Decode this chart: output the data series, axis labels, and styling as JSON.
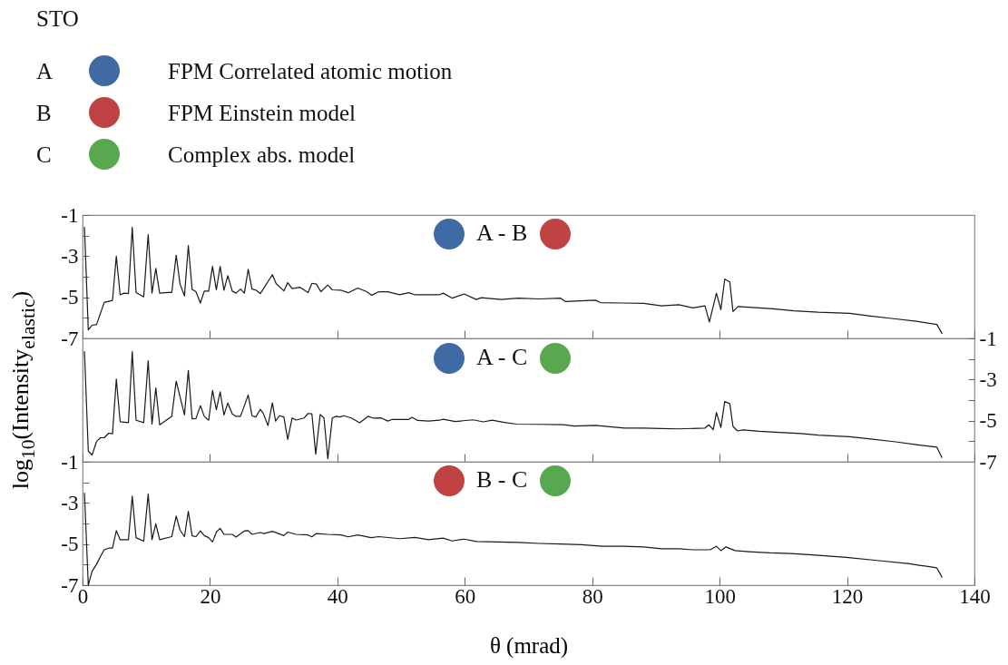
{
  "chart_data": [
    {
      "type": "line",
      "title": "A - B",
      "annotations": [
        "STO",
        "A",
        "FPM Correlated atomic motion",
        "B",
        "FPM Einstein model",
        "C",
        "Complex abs. model"
      ],
      "xlim": [
        0,
        140
      ],
      "xticks": [
        0,
        20,
        40,
        60,
        80,
        100,
        120,
        140
      ],
      "ylim": [
        -7,
        -1
      ],
      "yticks": [
        -1,
        {
          "value": -2,
          "label": null
        },
        -3,
        {
          "value": -4,
          "label": null
        },
        -5,
        {
          "value": -6,
          "label": null
        },
        -7
      ],
      "tick_labels": "y",
      "x": [
        0.3,
        0.9,
        1.5,
        2.2,
        3.4,
        4.7,
        5.3,
        5.9,
        6.5,
        7.2,
        7.8,
        8.4,
        9.6,
        10.3,
        10.9,
        11.5,
        12.1,
        13.4,
        14.0,
        14.7,
        15.3,
        16.0,
        16.6,
        17.2,
        17.8,
        18.5,
        19.1,
        19.8,
        20.4,
        21.0,
        21.6,
        22.2,
        22.8,
        23.5,
        24.1,
        24.8,
        25.4,
        26.0,
        26.6,
        27.2,
        27.9,
        29.8,
        30.4,
        31.6,
        32.2,
        32.9,
        34.1,
        35.4,
        36.0,
        36.7,
        37.4,
        38.5,
        39.2,
        40.6,
        41.7,
        43.2,
        44.6,
        45.4,
        46.5,
        47.9,
        49.8,
        51.2,
        52.2,
        54.3,
        56.0,
        56.6,
        58.0,
        59.9,
        61.8,
        62.6,
        65.7,
        68.4,
        71.7,
        75.0,
        75.8,
        80.5,
        81.3,
        84.8,
        88.1,
        90.9,
        93.6,
        95.8,
        97.7,
        98.4,
        99.5,
        100.2,
        100.8,
        101.6,
        102.1,
        102.9,
        106.2,
        108.4,
        111.7,
        115.5,
        120.4,
        123.7,
        127.0,
        130.9,
        134.1,
        134.9
      ],
      "series": [
        {
          "color": "#1a1a1a",
          "values": [
            -1.6,
            -6.59,
            -6.36,
            -6.32,
            -5.25,
            -5.15,
            -3.0,
            -4.88,
            -4.8,
            -4.82,
            -1.6,
            -4.77,
            -4.98,
            -1.95,
            -4.8,
            -3.6,
            -4.8,
            -4.77,
            -4.77,
            -2.96,
            -4.36,
            -4.93,
            -2.48,
            -4.62,
            -4.73,
            -5.28,
            -4.7,
            -4.7,
            -3.5,
            -4.63,
            -3.5,
            -4.66,
            -3.95,
            -4.7,
            -4.8,
            -4.6,
            -4.8,
            -3.64,
            -4.6,
            -4.65,
            -4.82,
            -3.9,
            -4.34,
            -4.69,
            -4.29,
            -4.58,
            -4.51,
            -4.77,
            -4.32,
            -4.36,
            -4.73,
            -4.4,
            -4.64,
            -4.66,
            -4.78,
            -4.55,
            -4.73,
            -4.9,
            -4.73,
            -4.73,
            -4.88,
            -4.78,
            -4.88,
            -4.88,
            -4.88,
            -4.8,
            -5.04,
            -4.84,
            -5.11,
            -5.02,
            -5.11,
            -5.04,
            -5.08,
            -5.04,
            -5.21,
            -5.14,
            -5.26,
            -5.28,
            -5.3,
            -5.42,
            -5.36,
            -5.52,
            -5.42,
            -6.2,
            -4.8,
            -5.6,
            -4.12,
            -4.25,
            -5.69,
            -5.45,
            -5.52,
            -5.56,
            -5.66,
            -5.73,
            -5.78,
            -5.91,
            -6.03,
            -6.17,
            -6.32,
            -6.75
          ]
        }
      ]
    },
    {
      "type": "line",
      "title": "A - C",
      "ylabel": "log$_{10}$(Intensity$_{elastic}$)",
      "xlim": [
        0,
        140
      ],
      "xticks": [
        0,
        20,
        40,
        60,
        80,
        100,
        120,
        140
      ],
      "y2lim": [
        -7,
        -1
      ],
      "y2ticks": [
        -1,
        {
          "value": -2,
          "label": null
        },
        -3,
        {
          "value": -4,
          "label": null
        },
        -5,
        {
          "value": -6,
          "label": null
        },
        -7
      ],
      "tick_labels": "y",
      "x": [
        0.3,
        0.9,
        1.5,
        2.2,
        2.8,
        3.4,
        4.1,
        4.7,
        5.3,
        5.9,
        7.2,
        7.8,
        8.4,
        9.6,
        10.3,
        10.9,
        11.5,
        12.1,
        14.0,
        14.7,
        16.0,
        16.6,
        17.2,
        17.8,
        18.5,
        19.1,
        19.8,
        20.4,
        21.0,
        21.6,
        22.2,
        22.8,
        23.5,
        24.1,
        24.8,
        26.0,
        26.6,
        27.2,
        27.9,
        28.4,
        29.1,
        29.8,
        30.3,
        30.9,
        31.6,
        32.2,
        32.9,
        33.5,
        34.8,
        35.4,
        36.0,
        36.6,
        37.3,
        37.9,
        38.5,
        39.2,
        39.8,
        40.4,
        41.0,
        42.2,
        43.5,
        44.8,
        45.7,
        46.9,
        47.9,
        48.6,
        51.2,
        51.7,
        52.6,
        54.3,
        56.0,
        56.6,
        58.5,
        61.3,
        62.9,
        64.3,
        66.2,
        68.1,
        71.7,
        75.5,
        77.2,
        80.5,
        85.1,
        88.1,
        90.9,
        93.6,
        97.7,
        98.3,
        99.0,
        99.5,
        100.2,
        100.8,
        101.6,
        102.1,
        102.8,
        103.7,
        106.2,
        110.0,
        112.8,
        115.5,
        120.4,
        123.7,
        127.6,
        130.9,
        134.1,
        134.9
      ],
      "series": [
        {
          "color": "#1a1a1a",
          "axis": "y2",
          "values": [
            -1.64,
            -6.48,
            -6.67,
            -6.01,
            -5.83,
            -5.83,
            -5.61,
            -5.64,
            -2.98,
            -5.05,
            -5.1,
            -1.64,
            -4.98,
            -5.1,
            -2.08,
            -5.17,
            -3.41,
            -5.2,
            -4.79,
            -3.08,
            -4.72,
            -2.56,
            -4.91,
            -4.9,
            -4.27,
            -4.79,
            -4.98,
            -3.53,
            -4.47,
            -3.6,
            -4.72,
            -4.14,
            -4.67,
            -4.79,
            -4.79,
            -3.75,
            -4.76,
            -4.82,
            -4.45,
            -4.67,
            -5.24,
            -4.14,
            -5.02,
            -4.76,
            -4.82,
            -5.91,
            -4.87,
            -4.97,
            -4.87,
            -4.65,
            -4.67,
            -6.63,
            -4.7,
            -4.87,
            -6.85,
            -4.87,
            -4.79,
            -4.82,
            -4.76,
            -4.87,
            -5.1,
            -4.79,
            -4.88,
            -4.87,
            -5.02,
            -4.94,
            -4.94,
            -4.84,
            -4.99,
            -5.02,
            -4.98,
            -4.93,
            -5.04,
            -4.96,
            -5.06,
            -4.98,
            -5.09,
            -5.17,
            -5.18,
            -5.2,
            -5.26,
            -5.23,
            -5.36,
            -5.36,
            -5.38,
            -5.4,
            -5.36,
            -5.2,
            -5.44,
            -4.6,
            -5.33,
            -4.07,
            -4.17,
            -5.28,
            -5.5,
            -5.45,
            -5.52,
            -5.58,
            -5.63,
            -5.7,
            -5.78,
            -5.89,
            -6.03,
            -6.17,
            -6.29,
            -6.79
          ]
        }
      ]
    },
    {
      "type": "line",
      "title": "B - C",
      "xlabel": "θ (mrad)",
      "xlim": [
        0,
        140
      ],
      "xticks": [
        0,
        20,
        40,
        60,
        80,
        100,
        120,
        140
      ],
      "ylim": [
        -7,
        -1
      ],
      "yticks": [
        -1,
        {
          "value": -2,
          "label": null
        },
        -3,
        {
          "value": -4,
          "label": null
        },
        -5,
        {
          "value": -6,
          "label": null
        },
        -7
      ],
      "x": [
        0.3,
        0.9,
        1.5,
        2.2,
        2.8,
        3.4,
        4.1,
        4.7,
        5.3,
        5.9,
        7.2,
        7.8,
        8.4,
        9.6,
        10.3,
        10.9,
        11.5,
        12.1,
        14.0,
        14.7,
        15.3,
        16.0,
        16.6,
        17.2,
        17.8,
        18.5,
        19.1,
        19.8,
        20.4,
        21.0,
        21.6,
        22.2,
        23.5,
        24.1,
        25.4,
        26.0,
        26.6,
        27.9,
        28.5,
        29.8,
        31.6,
        32.2,
        33.5,
        35.4,
        36.0,
        36.7,
        38.5,
        40.6,
        41.7,
        43.2,
        45.3,
        46.5,
        49.8,
        52.2,
        54.3,
        56.6,
        58.0,
        59.9,
        61.8,
        65.1,
        68.4,
        71.7,
        75.0,
        78.3,
        81.6,
        84.8,
        88.1,
        90.9,
        93.6,
        95.8,
        98.5,
        99.5,
        100.2,
        101.0,
        102.4,
        104.6,
        107.9,
        111.2,
        114.6,
        119.9,
        125.4,
        129.8,
        134.1,
        134.9
      ],
      "series": [
        {
          "color": "#1a1a1a",
          "values": [
            -2.53,
            -7.0,
            -6.32,
            -5.98,
            -5.61,
            -5.28,
            -5.2,
            -5.2,
            -4.35,
            -4.79,
            -4.79,
            -2.67,
            -4.69,
            -4.86,
            -2.57,
            -4.79,
            -4.02,
            -4.79,
            -4.64,
            -3.64,
            -4.32,
            -4.64,
            -3.41,
            -4.6,
            -4.64,
            -4.36,
            -4.59,
            -4.69,
            -4.9,
            -4.42,
            -4.24,
            -4.53,
            -4.53,
            -4.66,
            -4.36,
            -4.35,
            -4.53,
            -4.44,
            -4.49,
            -4.38,
            -4.59,
            -4.42,
            -4.53,
            -4.56,
            -4.65,
            -4.49,
            -4.53,
            -4.56,
            -4.65,
            -4.56,
            -4.69,
            -4.64,
            -4.74,
            -4.68,
            -4.79,
            -4.71,
            -4.85,
            -4.76,
            -4.88,
            -4.9,
            -4.92,
            -4.97,
            -5.0,
            -5.03,
            -5.11,
            -5.11,
            -5.14,
            -5.23,
            -5.23,
            -5.28,
            -5.28,
            -5.11,
            -5.32,
            -5.14,
            -5.32,
            -5.37,
            -5.43,
            -5.46,
            -5.53,
            -5.65,
            -5.82,
            -5.96,
            -6.16,
            -6.61
          ]
        }
      ]
    }
  ]
}
